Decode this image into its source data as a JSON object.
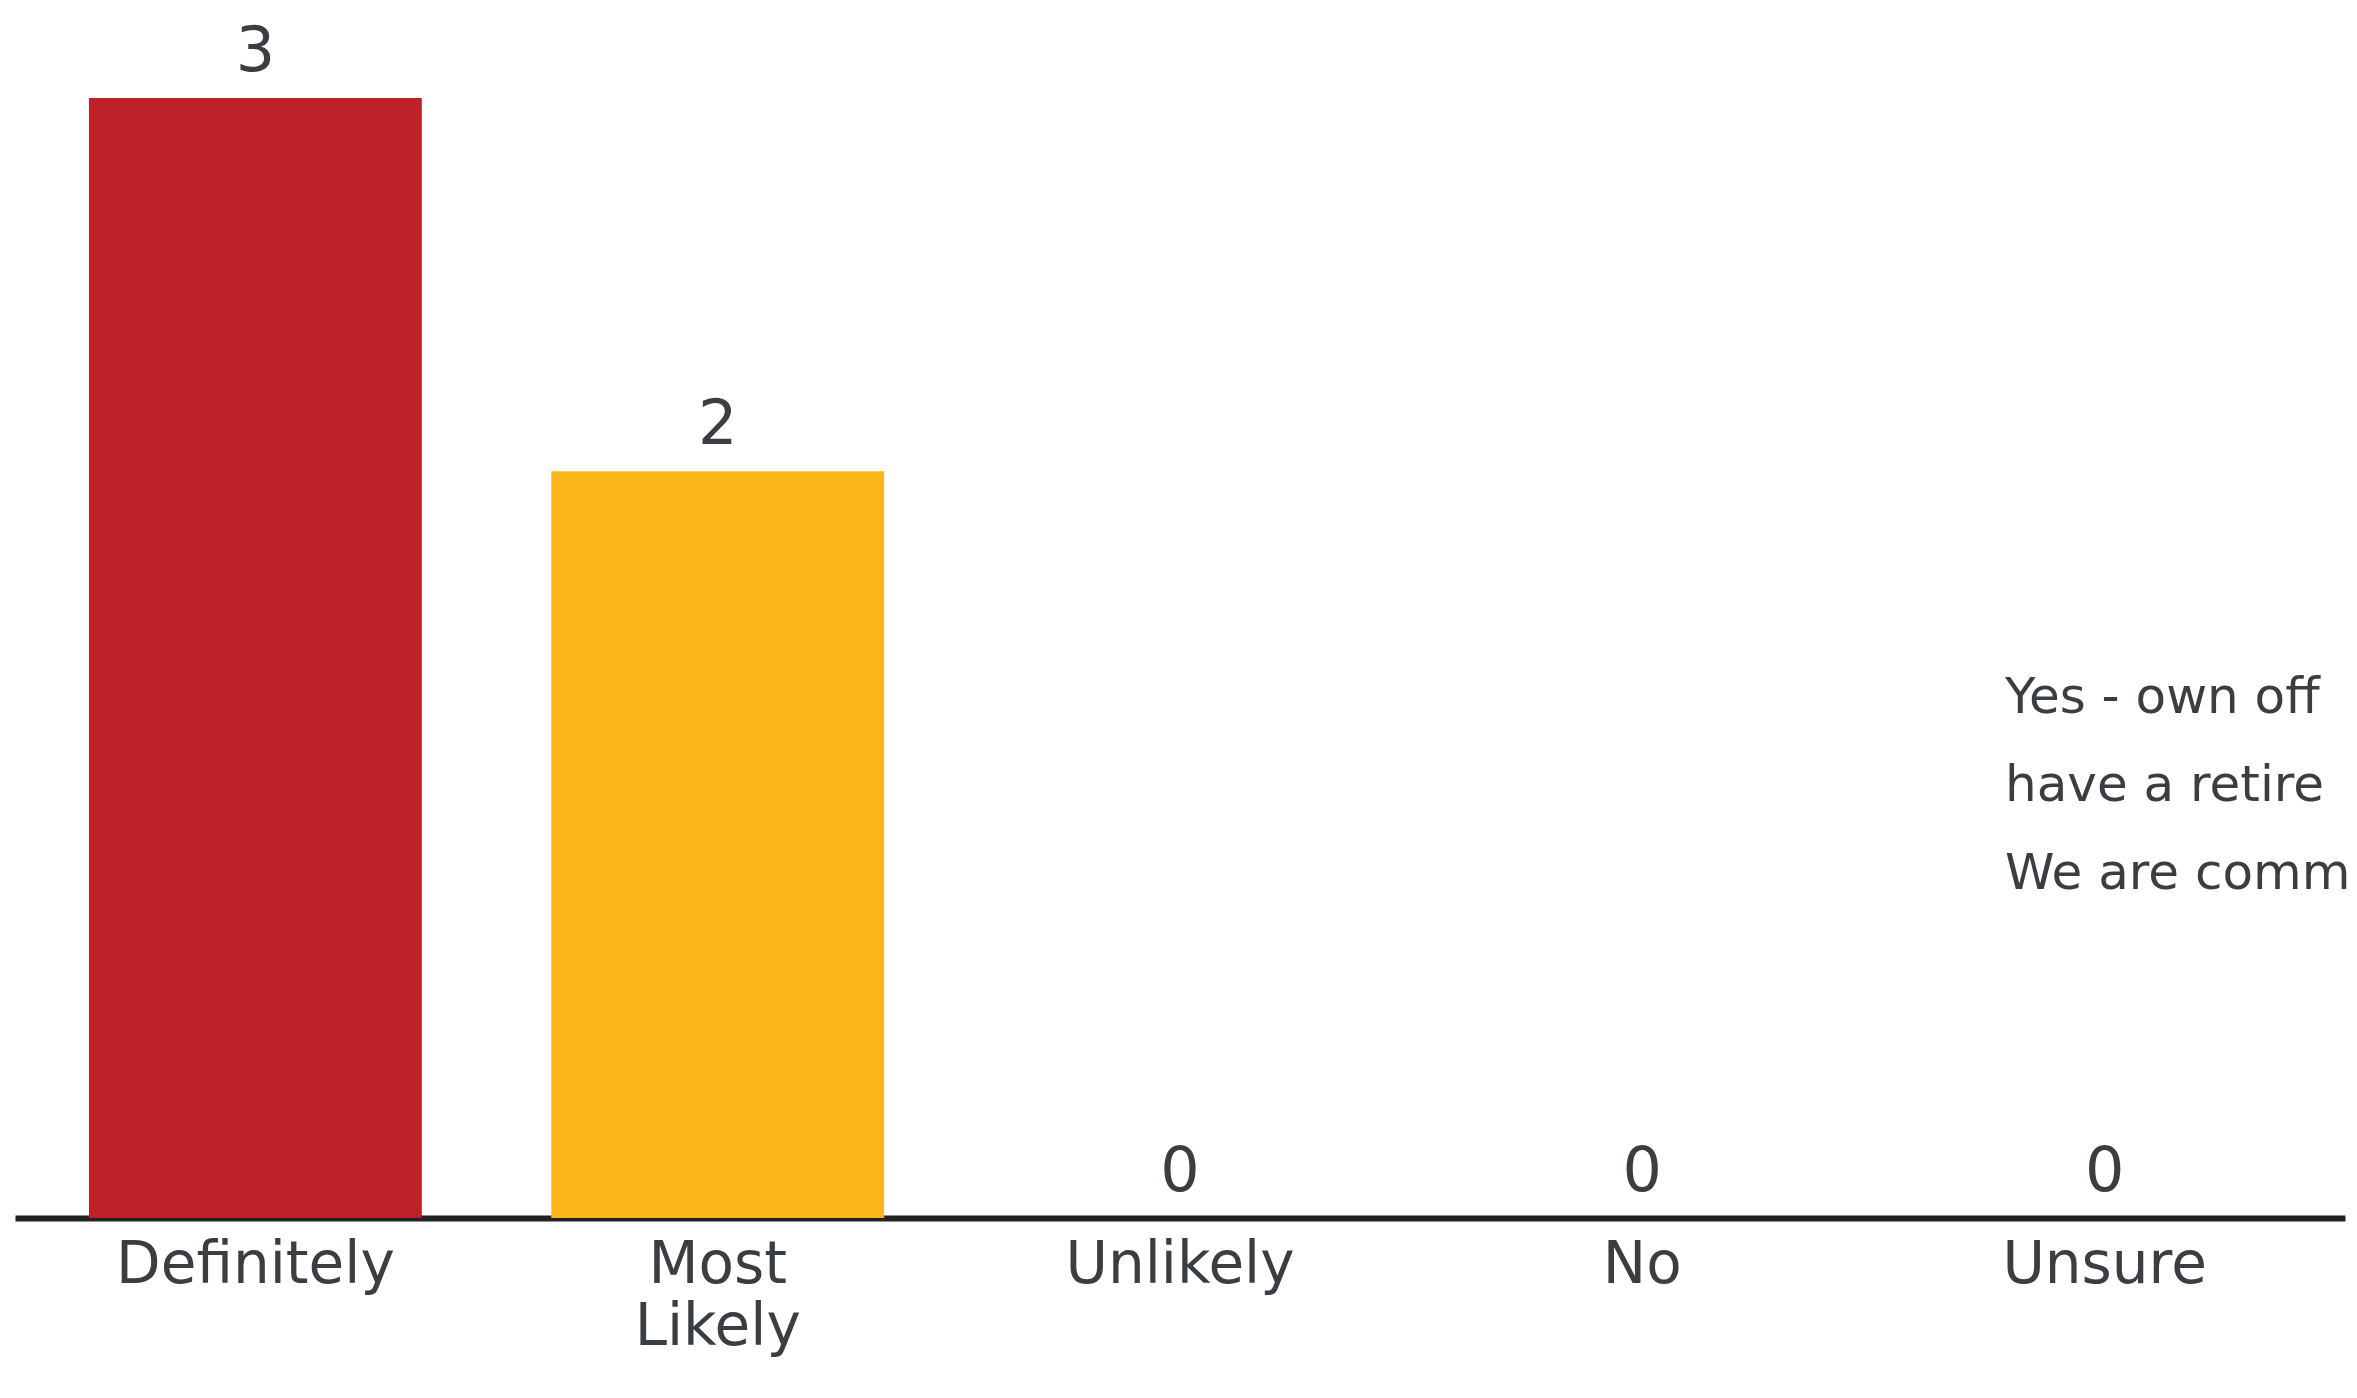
{
  "chart_data": {
    "type": "bar",
    "categories": [
      "Definitely",
      "Most Likely",
      "Unlikely",
      "No",
      "Unsure"
    ],
    "values": [
      3,
      2,
      0,
      0,
      0
    ],
    "colors": [
      "#bb2127",
      "#fbb61c",
      "#bb2127",
      "#bb2127",
      "#bb2127"
    ],
    "ylim": [
      0,
      3
    ],
    "data_labels": true,
    "tick_labels": "x",
    "annotations": [
      "Yes - own off",
      "have a retire",
      "We are comm"
    ]
  }
}
